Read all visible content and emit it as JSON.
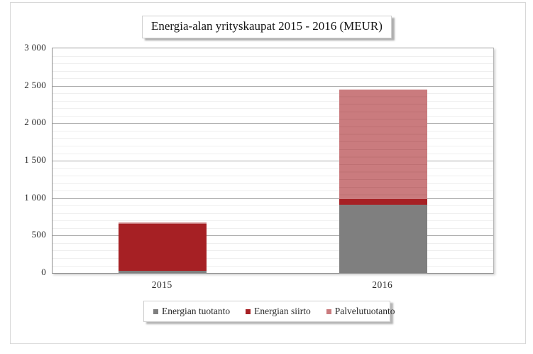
{
  "chart_data": {
    "type": "bar",
    "stacked": true,
    "title": "Energia-alan yrityskaupat 2015 - 2016 (MEUR)",
    "xlabel": "",
    "ylabel": "",
    "ylim": [
      0,
      3000
    ],
    "major_tick_interval": 500,
    "minor_tick_interval": 100,
    "grid": true,
    "legend_position": "bottom",
    "categories": [
      "2015",
      "2016"
    ],
    "yticks": [
      {
        "label": "3 000",
        "value": 3000
      },
      {
        "label": "2 500",
        "value": 2500
      },
      {
        "label": "2 000",
        "value": 2000
      },
      {
        "label": "1 500",
        "value": 1500
      },
      {
        "label": "1 000",
        "value": 1000
      },
      {
        "label": "500",
        "value": 500
      },
      {
        "label": "0",
        "value": 0
      }
    ],
    "series": [
      {
        "name": "Energian tuotanto",
        "color": "#7f7f7f",
        "values": [
          30,
          910
        ]
      },
      {
        "name": "Energian siirto",
        "color": "#a62024",
        "values": [
          630,
          75
        ]
      },
      {
        "name": "Palvelutuotanto",
        "color": "#ca7b7e",
        "values": [
          15,
          1465
        ]
      }
    ],
    "totals": [
      675,
      2450
    ]
  }
}
